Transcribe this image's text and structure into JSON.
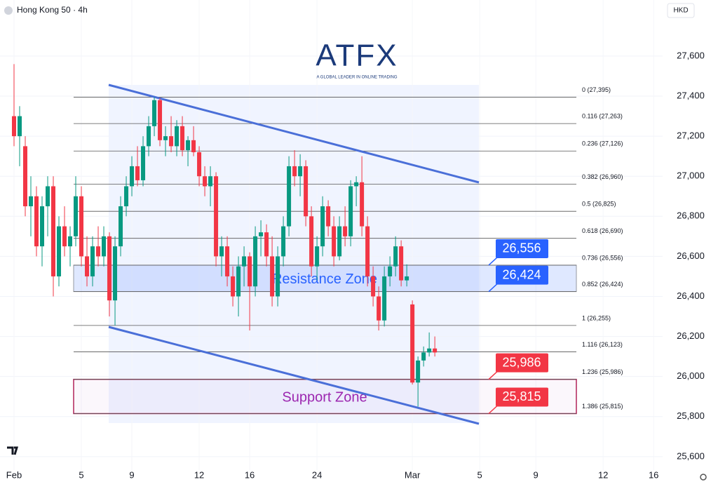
{
  "header": {
    "symbol": "Hong Kong 50 · 4h",
    "currency": "HKD"
  },
  "logo": {
    "name": "ATFX",
    "tagline": "A GLOBAL LEADER IN ONLINE TRADING"
  },
  "chart_data": {
    "type": "candlestick",
    "up_color": "#089981",
    "down_color": "#f23645",
    "ohlc": [
      [
        27300,
        27560,
        27150,
        27200
      ],
      [
        27200,
        27350,
        27050,
        27300
      ],
      [
        27150,
        27200,
        26800,
        26850
      ],
      [
        26850,
        27000,
        26700,
        26900
      ],
      [
        26900,
        26950,
        26600,
        26650
      ],
      [
        26650,
        26900,
        26550,
        26850
      ],
      [
        26850,
        27000,
        26700,
        26950
      ],
      [
        26950,
        27000,
        26400,
        26500
      ],
      [
        26500,
        26800,
        26450,
        26750
      ],
      [
        26750,
        26850,
        26600,
        26650
      ],
      [
        26650,
        26750,
        26550,
        26700
      ],
      [
        26700,
        27000,
        26650,
        26900
      ],
      [
        26900,
        26950,
        26550,
        26600
      ],
      [
        26600,
        26700,
        26450,
        26500
      ],
      [
        26500,
        26700,
        26450,
        26650
      ],
      [
        26650,
        26750,
        26550,
        26600
      ],
      [
        26600,
        26750,
        26550,
        26700
      ],
      [
        26700,
        26720,
        26300,
        26380
      ],
      [
        26380,
        26700,
        26255,
        26650
      ],
      [
        26650,
        26900,
        26600,
        26850
      ],
      [
        26850,
        27000,
        26800,
        26950
      ],
      [
        26950,
        27100,
        26900,
        27050
      ],
      [
        27050,
        27150,
        26950,
        26980
      ],
      [
        26980,
        27200,
        26950,
        27150
      ],
      [
        27150,
        27300,
        27100,
        27250
      ],
      [
        27250,
        27395,
        27200,
        27380
      ],
      [
        27380,
        27390,
        27150,
        27180
      ],
      [
        27180,
        27250,
        27100,
        27200
      ],
      [
        27200,
        27300,
        27120,
        27150
      ],
      [
        27150,
        27280,
        27100,
        27250
      ],
      [
        27250,
        27300,
        27100,
        27130
      ],
      [
        27130,
        27200,
        27050,
        27180
      ],
      [
        27180,
        27250,
        27100,
        27120
      ],
      [
        27120,
        27150,
        26950,
        27000
      ],
      [
        27000,
        27050,
        26900,
        26950
      ],
      [
        26950,
        27050,
        26850,
        27000
      ],
      [
        27000,
        27020,
        26550,
        26600
      ],
      [
        26600,
        26700,
        26500,
        26650
      ],
      [
        26650,
        26700,
        26450,
        26500
      ],
      [
        26500,
        26550,
        26350,
        26400
      ],
      [
        26400,
        26600,
        26300,
        26550
      ],
      [
        26550,
        26650,
        26450,
        26600
      ],
      [
        26600,
        26620,
        26230,
        26450
      ],
      [
        26450,
        26750,
        26400,
        26700
      ],
      [
        26700,
        26780,
        26600,
        26720
      ],
      [
        26720,
        26760,
        26550,
        26600
      ],
      [
        26600,
        26700,
        26350,
        26400
      ],
      [
        26400,
        26650,
        26350,
        26600
      ],
      [
        26600,
        26800,
        26550,
        26750
      ],
      [
        26750,
        27100,
        26700,
        27050
      ],
      [
        27050,
        27130,
        26950,
        27000
      ],
      [
        27000,
        27110,
        26900,
        27050
      ],
      [
        27050,
        27080,
        26750,
        26800
      ],
      [
        26800,
        26850,
        26500,
        26550
      ],
      [
        26550,
        26700,
        26480,
        26650
      ],
      [
        26650,
        26900,
        26600,
        26850
      ],
      [
        26850,
        26880,
        26700,
        26750
      ],
      [
        26750,
        26800,
        26550,
        26600
      ],
      [
        26600,
        26800,
        26580,
        26750
      ],
      [
        26750,
        26850,
        26650,
        26700
      ],
      [
        26700,
        26980,
        26650,
        26950
      ],
      [
        26950,
        27000,
        26850,
        26970
      ],
      [
        26970,
        27100,
        26700,
        26750
      ],
      [
        26750,
        26800,
        26450,
        26500
      ],
      [
        26500,
        26550,
        26350,
        26400
      ],
      [
        26400,
        26450,
        26230,
        26280
      ],
      [
        26280,
        26550,
        26250,
        26500
      ],
      [
        26500,
        26600,
        26450,
        26550
      ],
      [
        26550,
        26700,
        26500,
        26650
      ],
      [
        26650,
        26680,
        26450,
        26480
      ],
      [
        26480,
        26560,
        26450,
        26500
      ],
      [
        26360,
        26380,
        25960,
        25970
      ],
      [
        25970,
        26100,
        25850,
        26080
      ],
      [
        26080,
        26150,
        26050,
        26120
      ],
      [
        26120,
        26220,
        26100,
        26140
      ],
      [
        26140,
        26200,
        26100,
        26120
      ]
    ],
    "xlim": [
      -2.5,
      115.6
    ],
    "xticks": [
      {
        "value": 0,
        "label": "Feb"
      },
      {
        "value": 12,
        "label": "5"
      },
      {
        "value": 21,
        "label": "9"
      },
      {
        "value": 33,
        "label": "12"
      },
      {
        "value": 42,
        "label": "16"
      },
      {
        "value": 54,
        "label": "24"
      },
      {
        "value": 71,
        "label": "Mar"
      },
      {
        "value": 83,
        "label": "5"
      },
      {
        "value": 93,
        "label": "9"
      },
      {
        "value": 105,
        "label": "12"
      },
      {
        "value": 114,
        "label": "16"
      }
    ],
    "ylim": [
      25533,
      27880
    ],
    "yticks": [
      {
        "value": 25600,
        "label": "25,600"
      },
      {
        "value": 25800,
        "label": "25,800"
      },
      {
        "value": 26000,
        "label": "26,000"
      },
      {
        "value": 26200,
        "label": "26,200"
      },
      {
        "value": 26400,
        "label": "26,400"
      },
      {
        "value": 26600,
        "label": "26,600"
      },
      {
        "value": 26800,
        "label": "26,800"
      },
      {
        "value": 27000,
        "label": "27,000"
      },
      {
        "value": 27200,
        "label": "27,200"
      },
      {
        "value": 27400,
        "label": "27,400"
      },
      {
        "value": 27600,
        "label": "27,600"
      }
    ],
    "fib_levels": [
      {
        "value": 27395,
        "label": "0 (27,395)"
      },
      {
        "value": 27263,
        "label": "0.116 (27,263)"
      },
      {
        "value": 27126,
        "label": "0.236 (27,126)"
      },
      {
        "value": 26960,
        "label": "0.382 (26,960)"
      },
      {
        "value": 26825,
        "label": "0.5 (26,825)"
      },
      {
        "value": 26690,
        "label": "0.618 (26,690)"
      },
      {
        "value": 26556,
        "label": "0.736 (26,556)"
      },
      {
        "value": 26424,
        "label": "0.852 (26,424)"
      },
      {
        "value": 26255,
        "label": "1 (26,255)"
      },
      {
        "value": 26123,
        "label": "1.116 (26,123)"
      },
      {
        "value": 25986,
        "label": "1.236 (25,986)"
      },
      {
        "value": 25815,
        "label": "1.386 (25,815)"
      }
    ],
    "zones": [
      {
        "label": "Resistance Zone",
        "range": [
          26424,
          26556
        ],
        "color": "#2962ff"
      },
      {
        "label": "Support Zone",
        "range": [
          25815,
          25986
        ],
        "color": "#9c27b0"
      }
    ],
    "price_labels": [
      {
        "value": 26556,
        "label": "26,556",
        "color": "#2962ff"
      },
      {
        "value": 26424,
        "label": "26,424",
        "color": "#2962ff"
      },
      {
        "value": 25986,
        "label": "25,986",
        "color": "#f23645"
      },
      {
        "value": 25815,
        "label": "25,815",
        "color": "#f23645"
      }
    ]
  }
}
